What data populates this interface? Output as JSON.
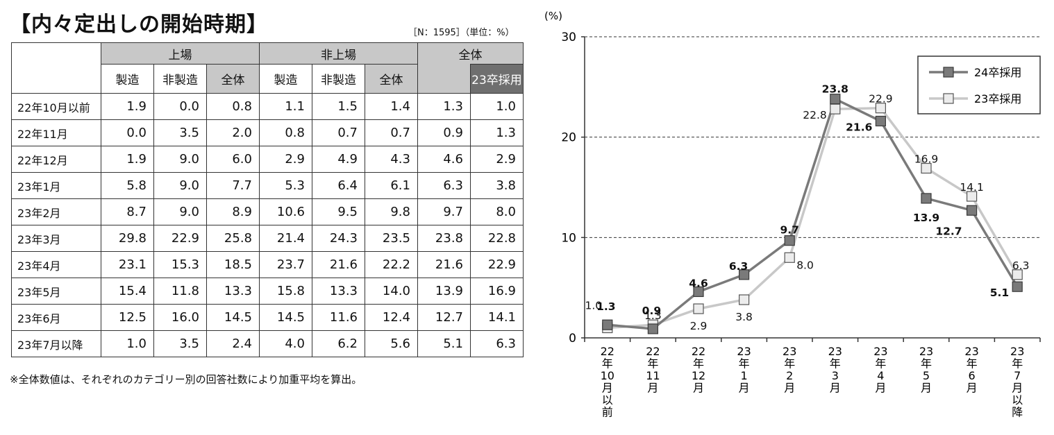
{
  "title": "【内々定出しの開始時期】",
  "note": "［N：1595］（単位：%）",
  "footnote": "※全体数値は、それぞれのカテゴリー別の回答社数により加重平均を算出。",
  "table": {
    "group1": "上場",
    "group2": "非上場",
    "total": "全体",
    "subcols": [
      "製造",
      "非製造",
      "全体",
      "製造",
      "非製造",
      "全体"
    ],
    "prev": "23卒採用",
    "rows": [
      {
        "label": "22年10月以前",
        "vals": [
          "1.9",
          "0.0",
          "0.8",
          "1.1",
          "1.5",
          "1.4",
          "1.3",
          "1.0"
        ]
      },
      {
        "label": "22年11月",
        "vals": [
          "0.0",
          "3.5",
          "2.0",
          "0.8",
          "0.7",
          "0.7",
          "0.9",
          "1.3"
        ]
      },
      {
        "label": "22年12月",
        "vals": [
          "1.9",
          "9.0",
          "6.0",
          "2.9",
          "4.9",
          "4.3",
          "4.6",
          "2.9"
        ]
      },
      {
        "label": "23年1月",
        "vals": [
          "5.8",
          "9.0",
          "7.7",
          "5.3",
          "6.4",
          "6.1",
          "6.3",
          "3.8"
        ]
      },
      {
        "label": "23年2月",
        "vals": [
          "8.7",
          "9.0",
          "8.9",
          "10.6",
          "9.5",
          "9.8",
          "9.7",
          "8.0"
        ]
      },
      {
        "label": "23年3月",
        "vals": [
          "29.8",
          "22.9",
          "25.8",
          "21.4",
          "24.3",
          "23.5",
          "23.8",
          "22.8"
        ]
      },
      {
        "label": "23年4月",
        "vals": [
          "23.1",
          "15.3",
          "18.5",
          "23.7",
          "21.6",
          "22.2",
          "21.6",
          "22.9"
        ]
      },
      {
        "label": "23年5月",
        "vals": [
          "15.4",
          "11.8",
          "13.3",
          "15.8",
          "13.3",
          "14.0",
          "13.9",
          "16.9"
        ]
      },
      {
        "label": "23年6月",
        "vals": [
          "12.5",
          "16.0",
          "14.5",
          "14.5",
          "11.6",
          "12.4",
          "12.7",
          "14.1"
        ]
      },
      {
        "label": "23年7月以降",
        "vals": [
          "1.0",
          "3.5",
          "2.4",
          "4.0",
          "6.2",
          "5.6",
          "5.1",
          "6.3"
        ]
      }
    ]
  },
  "chart_data": {
    "type": "line",
    "ylabel": "(%)",
    "ylim": [
      0,
      30
    ],
    "yticks": [
      0,
      10,
      20,
      30
    ],
    "grid": "dashed horizontal",
    "legend_position": "top-right",
    "categories": [
      "22年10月以前",
      "22年11月",
      "22年12月",
      "23年1月",
      "23年2月",
      "23年3月",
      "23年4月",
      "23年5月",
      "23年6月",
      "23年7月以降"
    ],
    "category_labels": [
      "22\n年\n10\n月\n以\n前",
      "22\n年\n11\n月",
      "22\n年\n12\n月",
      "23\n年\n1\n月",
      "23\n年\n2\n月",
      "23\n年\n3\n月",
      "23\n年\n4\n月",
      "23\n年\n5\n月",
      "23\n年\n6\n月",
      "23\n年\n7\n月\n以\n降"
    ],
    "series": [
      {
        "name": "24卒採用",
        "color": "#7a7a7a",
        "values": [
          1.3,
          0.9,
          4.6,
          6.3,
          9.7,
          23.8,
          21.6,
          13.9,
          12.7,
          5.1
        ]
      },
      {
        "name": "23卒採用",
        "color": "#c8c8c8",
        "values": [
          1.0,
          1.3,
          2.9,
          3.8,
          8.0,
          22.8,
          22.9,
          16.9,
          14.1,
          6.3
        ]
      }
    ]
  }
}
